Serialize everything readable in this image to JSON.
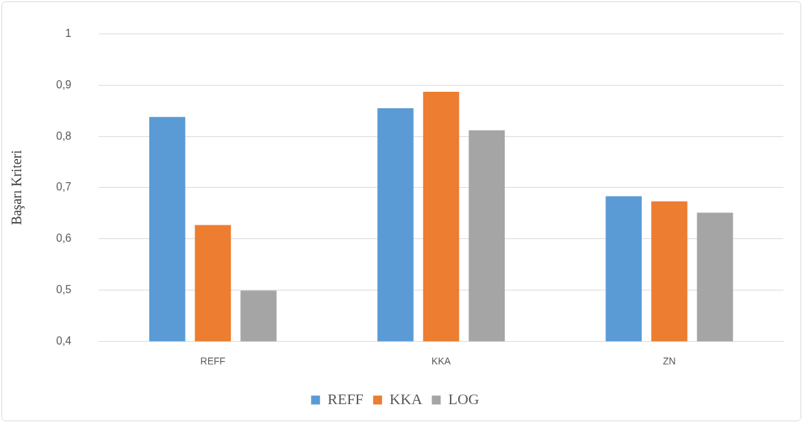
{
  "chart_data": {
    "type": "bar",
    "ylabel": "Başarı Kriteri",
    "categories": [
      "REFF",
      "KKA",
      "ZN"
    ],
    "series": [
      {
        "name": "REFF",
        "color": "#5b9bd5",
        "values": [
          0.838,
          0.855,
          0.683
        ]
      },
      {
        "name": "KKA",
        "color": "#ed7d31",
        "values": [
          0.627,
          0.887,
          0.673
        ]
      },
      {
        "name": "LOG",
        "color": "#a5a5a5",
        "values": [
          0.499,
          0.812,
          0.651
        ]
      }
    ],
    "ylim": [
      0.4,
      1
    ],
    "yticks": [
      {
        "value": 0.4,
        "label": "0,4"
      },
      {
        "value": 0.5,
        "label": "0,5"
      },
      {
        "value": 0.6,
        "label": "0,6"
      },
      {
        "value": 0.7,
        "label": "0,7"
      },
      {
        "value": 0.8,
        "label": "0,8"
      },
      {
        "value": 0.9,
        "label": "0,9"
      },
      1
    ],
    "grid": "y",
    "legend": "bottom"
  }
}
